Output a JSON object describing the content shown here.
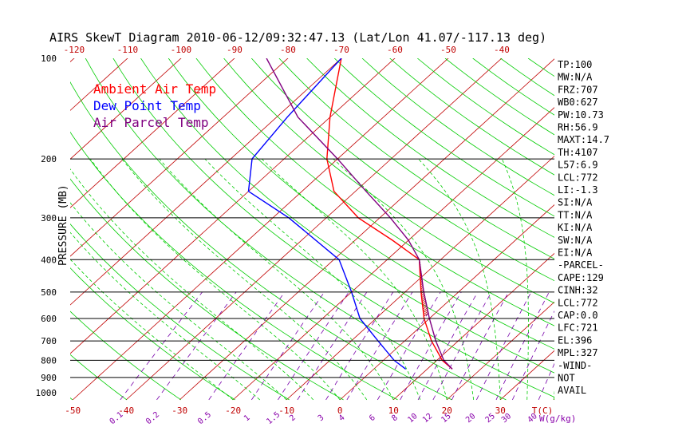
{
  "chart_data": {
    "type": "line",
    "title": "AIRS SkewT Diagram 2010-06-12/09:32:47.13 (Lat/Lon 41.07/-117.13 deg)",
    "ylabel": "PRESSURE (MB)",
    "y_scale": "log",
    "ylim": [
      1000,
      100
    ],
    "y_ticks": [
      100,
      200,
      300,
      400,
      500,
      600,
      700,
      800,
      900,
      1000
    ],
    "isobars_drawn": [
      200,
      300,
      400,
      500,
      600,
      700,
      800,
      900
    ],
    "x_unit_label": "T(C)",
    "top_temp_ticks": [
      -120,
      -110,
      -100,
      -90,
      -80,
      -70,
      -60,
      -50,
      -40
    ],
    "bottom_temp_ticks": [
      -50,
      -40,
      -30,
      -20,
      -10,
      0,
      10,
      20,
      30
    ],
    "mixing_ratio_label": "W(g/kg)",
    "mixing_ratio_ticks": [
      "0.1",
      "0.2",
      "0.5",
      "1",
      "1.5",
      "2",
      "3",
      "4",
      "6",
      "8",
      "10",
      "12",
      "15",
      "20",
      "25",
      "30",
      "40"
    ],
    "legend": [
      "Ambient Air Temp",
      "Dew Point Temp",
      "Air Parcel Temp"
    ],
    "series": [
      {
        "name": "Ambient Air Temp",
        "color": "#ff0000",
        "points": [
          [
            850,
            14.7
          ],
          [
            800,
            11
          ],
          [
            700,
            5
          ],
          [
            600,
            -1
          ],
          [
            500,
            -7
          ],
          [
            400,
            -14
          ],
          [
            350,
            -23
          ],
          [
            300,
            -34
          ],
          [
            250,
            -44
          ],
          [
            200,
            -52
          ],
          [
            150,
            -60
          ],
          [
            100,
            -70
          ]
        ]
      },
      {
        "name": "Dew Point Temp",
        "color": "#0000ff",
        "points": [
          [
            850,
            6
          ],
          [
            800,
            2
          ],
          [
            700,
            -5
          ],
          [
            600,
            -13
          ],
          [
            500,
            -20
          ],
          [
            400,
            -29
          ],
          [
            300,
            -47
          ],
          [
            250,
            -60
          ],
          [
            200,
            -66
          ],
          [
            150,
            -68
          ],
          [
            100,
            -70
          ]
        ]
      },
      {
        "name": "Air Parcel Temp",
        "color": "#800080",
        "points": [
          [
            850,
            14.7
          ],
          [
            800,
            11.3
          ],
          [
            700,
            5.8
          ],
          [
            600,
            0
          ],
          [
            500,
            -6.5
          ],
          [
            400,
            -14
          ],
          [
            350,
            -20
          ],
          [
            300,
            -28
          ],
          [
            250,
            -38
          ],
          [
            200,
            -50
          ],
          [
            150,
            -66
          ],
          [
            100,
            -84
          ]
        ]
      }
    ]
  },
  "indices": [
    "TP:100",
    "MW:N/A",
    "FRZ:707",
    "WB0:627",
    "PW:10.73",
    "RH:56.9",
    "MAXT:14.7",
    "TH:4107",
    "L57:6.9",
    "LCL:772",
    "LI:-1.3",
    "SI:N/A",
    "TT:N/A",
    "KI:N/A",
    "SW:N/A",
    "EI:N/A",
    "-PARCEL-",
    "CAPE:129",
    "CINH:32",
    "LCL:772",
    "CAP:0.0",
    "LFC:721",
    "EL:396",
    "MPL:327",
    "-WIND-",
    " NOT",
    " AVAIL"
  ],
  "colors": {
    "temp_line": "#ff0000",
    "isotherm": "#c00000",
    "dry_adiabat": "#00cc00",
    "moist_adiabat": "#00cc00",
    "mixing_ratio": "#7700aa",
    "dewpoint": "#0000ff",
    "parcel": "#800080",
    "isobar": "#000000",
    "bottom_labels": "#c00000",
    "mixing_labels": "#8800aa",
    "hatch": "#c00000"
  }
}
